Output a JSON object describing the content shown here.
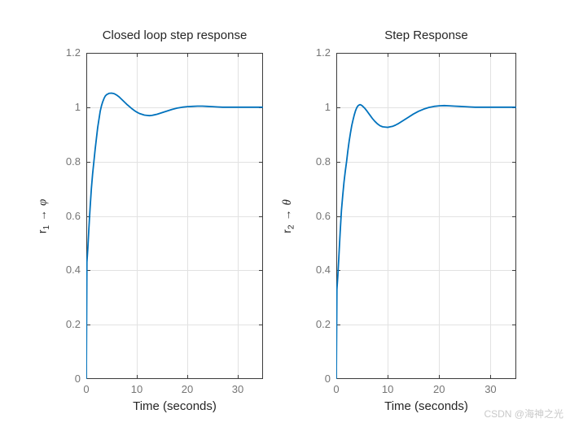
{
  "watermark": {
    "text": "CSDN @海神之光"
  },
  "colors": {
    "background": "#ffffff",
    "line": "#0072BD",
    "grid": "#e2e2e2",
    "axis": "#3c3c3c",
    "tick_label": "#757575",
    "text": "#262626",
    "watermark": "#c9c9c9"
  },
  "chart_data": [
    {
      "type": "line",
      "title": "Closed loop step response",
      "xlabel": "Time (seconds)",
      "ylabel": "r_1 → φ",
      "ylabel_parts": {
        "base": "r",
        "sub": "1",
        "arrow": "→",
        "symbol": "φ"
      },
      "xlim": [
        0,
        35
      ],
      "ylim": [
        0,
        1.2
      ],
      "xticks": {
        "values": [
          0,
          10,
          20,
          30
        ],
        "labels": [
          "0",
          "10",
          "20",
          "30"
        ]
      },
      "yticks": {
        "values": [
          0,
          0.2,
          0.4,
          0.6,
          0.8,
          1,
          1.2
        ],
        "labels": [
          "0",
          "0.2",
          "0.4",
          "0.6",
          "0.8",
          "1",
          "1.2"
        ]
      },
      "grid": true,
      "legend": null,
      "series": [
        {
          "name": "r1 to phi step response",
          "color": "#0072BD",
          "points": [
            [
              0,
              0
            ],
            [
              0.12,
              0.43
            ],
            [
              0.3,
              0.48
            ],
            [
              0.5,
              0.55
            ],
            [
              0.75,
              0.63
            ],
            [
              1,
              0.7
            ],
            [
              1.25,
              0.755
            ],
            [
              1.5,
              0.8
            ],
            [
              1.75,
              0.845
            ],
            [
              2,
              0.885
            ],
            [
              2.25,
              0.925
            ],
            [
              2.5,
              0.955
            ],
            [
              2.75,
              0.985
            ],
            [
              3,
              1.005
            ],
            [
              3.25,
              1.02
            ],
            [
              3.5,
              1.032
            ],
            [
              3.75,
              1.041
            ],
            [
              4,
              1.046
            ],
            [
              4.5,
              1.051
            ],
            [
              5,
              1.052
            ],
            [
              5.5,
              1.05
            ],
            [
              6,
              1.045
            ],
            [
              6.5,
              1.038
            ],
            [
              7,
              1.029
            ],
            [
              7.5,
              1.02
            ],
            [
              8,
              1.011
            ],
            [
              8.5,
              1.003
            ],
            [
              9,
              0.995
            ],
            [
              9.5,
              0.988
            ],
            [
              10,
              0.982
            ],
            [
              10.5,
              0.977
            ],
            [
              11,
              0.974
            ],
            [
              11.5,
              0.971
            ],
            [
              12,
              0.97
            ],
            [
              12.5,
              0.969
            ],
            [
              13,
              0.97
            ],
            [
              13.5,
              0.972
            ],
            [
              14,
              0.974
            ],
            [
              15,
              0.98
            ],
            [
              16,
              0.986
            ],
            [
              17,
              0.992
            ],
            [
              18,
              0.997
            ],
            [
              19,
              1.0
            ],
            [
              20,
              1.002
            ],
            [
              21,
              1.003
            ],
            [
              22,
              1.004
            ],
            [
              23,
              1.004
            ],
            [
              24,
              1.003
            ],
            [
              25,
              1.002
            ],
            [
              26,
              1.001
            ],
            [
              27,
              1.0
            ],
            [
              28,
              1.0
            ],
            [
              30,
              1.0
            ],
            [
              32,
              1.0
            ],
            [
              35,
              1.0
            ]
          ]
        }
      ]
    },
    {
      "type": "line",
      "title": "Step Response",
      "xlabel": "Time (seconds)",
      "ylabel": "r_2 → θ",
      "ylabel_parts": {
        "base": "r",
        "sub": "2",
        "arrow": "→",
        "symbol": "θ"
      },
      "xlim": [
        0,
        35
      ],
      "ylim": [
        0,
        1.2
      ],
      "xticks": {
        "values": [
          0,
          10,
          20,
          30
        ],
        "labels": [
          "0",
          "10",
          "20",
          "30"
        ]
      },
      "yticks": {
        "values": [
          0,
          0.2,
          0.4,
          0.6,
          0.8,
          1,
          1.2
        ],
        "labels": [
          "0",
          "0.2",
          "0.4",
          "0.6",
          "0.8",
          "1",
          "1.2"
        ]
      },
      "grid": true,
      "legend": null,
      "series": [
        {
          "name": "r2 to theta step response",
          "color": "#0072BD",
          "points": [
            [
              0,
              0
            ],
            [
              0.12,
              0.33
            ],
            [
              0.3,
              0.38
            ],
            [
              0.5,
              0.45
            ],
            [
              0.75,
              0.54
            ],
            [
              1,
              0.62
            ],
            [
              1.25,
              0.675
            ],
            [
              1.5,
              0.725
            ],
            [
              1.75,
              0.765
            ],
            [
              2,
              0.8
            ],
            [
              2.25,
              0.84
            ],
            [
              2.5,
              0.875
            ],
            [
              2.75,
              0.905
            ],
            [
              3,
              0.932
            ],
            [
              3.25,
              0.953
            ],
            [
              3.5,
              0.972
            ],
            [
              3.75,
              0.988
            ],
            [
              4,
              0.999
            ],
            [
              4.25,
              1.006
            ],
            [
              4.5,
              1.009
            ],
            [
              4.75,
              1.009
            ],
            [
              5,
              1.006
            ],
            [
              5.5,
              0.997
            ],
            [
              6,
              0.985
            ],
            [
              6.5,
              0.972
            ],
            [
              7,
              0.959
            ],
            [
              7.5,
              0.948
            ],
            [
              8,
              0.939
            ],
            [
              8.5,
              0.932
            ],
            [
              9,
              0.928
            ],
            [
              9.5,
              0.927
            ],
            [
              10,
              0.926
            ],
            [
              10.5,
              0.928
            ],
            [
              11,
              0.93
            ],
            [
              11.5,
              0.934
            ],
            [
              12,
              0.939
            ],
            [
              12.5,
              0.945
            ],
            [
              13,
              0.951
            ],
            [
              13.5,
              0.957
            ],
            [
              14,
              0.963
            ],
            [
              15,
              0.975
            ],
            [
              16,
              0.985
            ],
            [
              17,
              0.993
            ],
            [
              18,
              0.999
            ],
            [
              19,
              1.003
            ],
            [
              20,
              1.005
            ],
            [
              21,
              1.006
            ],
            [
              22,
              1.005
            ],
            [
              23,
              1.004
            ],
            [
              24,
              1.003
            ],
            [
              25,
              1.002
            ],
            [
              26,
              1.001
            ],
            [
              27,
              1.0
            ],
            [
              28,
              1.0
            ],
            [
              30,
              1.0
            ],
            [
              32,
              1.0
            ],
            [
              35,
              1.0
            ]
          ]
        }
      ]
    }
  ]
}
